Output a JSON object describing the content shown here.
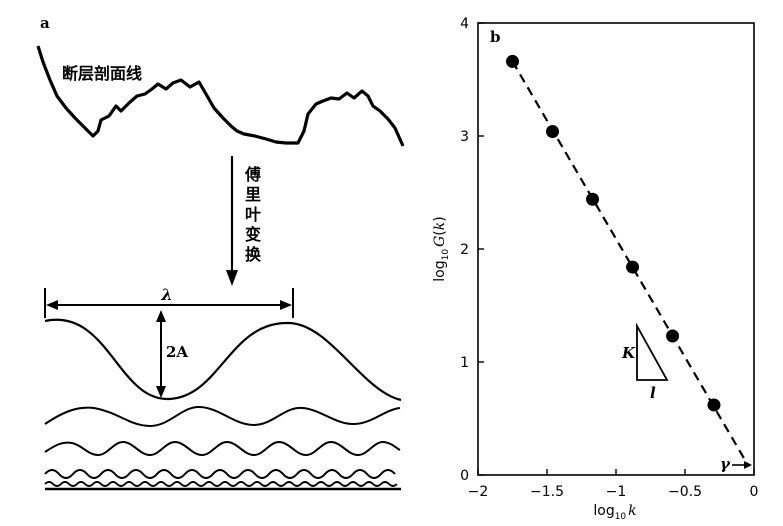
{
  "panel_a": {
    "panel_letter": "a",
    "profile_label": "断层剖面线",
    "transform_label": [
      "傅",
      "里",
      "叶",
      "变",
      "换"
    ],
    "wavelength_symbol": "λ",
    "amplitude_label": "2A"
  },
  "chart_data": {
    "type": "scatter",
    "panel_letter": "b",
    "title": "",
    "xlabel": "log10 k",
    "ylabel": "log10 G(k)",
    "xlim": [
      -2,
      0
    ],
    "ylim": [
      0,
      4
    ],
    "xticks": [
      -2,
      -1.5,
      -1,
      -0.5,
      0
    ],
    "xtick_labels": [
      "−2",
      "−1.5",
      "−1",
      "−0.5",
      "0"
    ],
    "yticks": [
      0,
      1,
      2,
      3,
      4
    ],
    "ytick_labels": [
      "0",
      "1",
      "2",
      "3",
      "4"
    ],
    "grid": false,
    "series": [
      {
        "x": [
          -1.75,
          -1.46,
          -1.17,
          -0.88,
          -0.59,
          -0.29
        ],
        "y": [
          3.66,
          3.04,
          2.44,
          1.84,
          1.23,
          0.62
        ]
      }
    ],
    "fit_line": {
      "x": [
        -1.75,
        -0.04
      ],
      "y": [
        3.66,
        0.08
      ],
      "style": "dashed"
    },
    "slope_triangle": {
      "rise_label": "K",
      "run_label": "l"
    },
    "intercept_annotation": "γ"
  }
}
